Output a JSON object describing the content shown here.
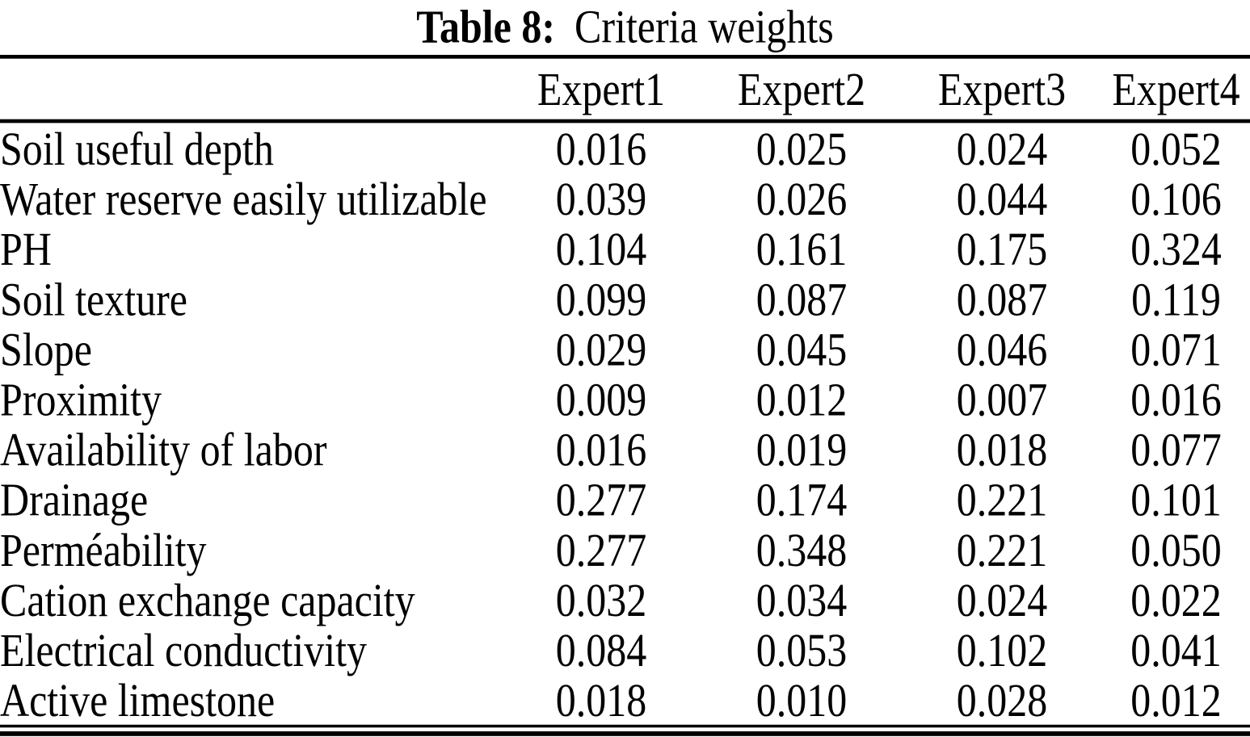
{
  "caption": {
    "label": "Table 8:",
    "text": "Criteria weights"
  },
  "table": {
    "columns": [
      "Expert1",
      "Expert2",
      "Expert3",
      "Expert4"
    ],
    "rows": [
      {
        "criterion": "Soil useful depth",
        "values": [
          "0.016",
          "0.025",
          "0.024",
          "0.052"
        ]
      },
      {
        "criterion": "Water reserve easily utilizable",
        "values": [
          "0.039",
          "0.026",
          "0.044",
          "0.106"
        ]
      },
      {
        "criterion": "PH",
        "values": [
          "0.104",
          "0.161",
          "0.175",
          "0.324"
        ]
      },
      {
        "criterion": "Soil texture",
        "values": [
          "0.099",
          "0.087",
          "0.087",
          "0.119"
        ]
      },
      {
        "criterion": "Slope",
        "values": [
          "0.029",
          "0.045",
          "0.046",
          "0.071"
        ]
      },
      {
        "criterion": "Proximity",
        "values": [
          "0.009",
          "0.012",
          "0.007",
          "0.016"
        ]
      },
      {
        "criterion": "Availability of labor",
        "values": [
          "0.016",
          "0.019",
          "0.018",
          "0.077"
        ]
      },
      {
        "criterion": "Drainage",
        "values": [
          "0.277",
          "0.174",
          "0.221",
          "0.101"
        ]
      },
      {
        "criterion": "Perméability",
        "values": [
          "0.277",
          "0.348",
          "0.221",
          "0.050"
        ]
      },
      {
        "criterion": "Cation exchange capacity",
        "values": [
          "0.032",
          "0.034",
          "0.024",
          "0.022"
        ]
      },
      {
        "criterion": "Electrical conductivity",
        "values": [
          "0.084",
          "0.053",
          "0.102",
          "0.041"
        ]
      },
      {
        "criterion": "Active limestone",
        "values": [
          "0.018",
          "0.010",
          "0.028",
          "0.012"
        ]
      }
    ]
  },
  "colors": {
    "text": "#000000",
    "background": "#ffffff",
    "rule": "#000000"
  }
}
